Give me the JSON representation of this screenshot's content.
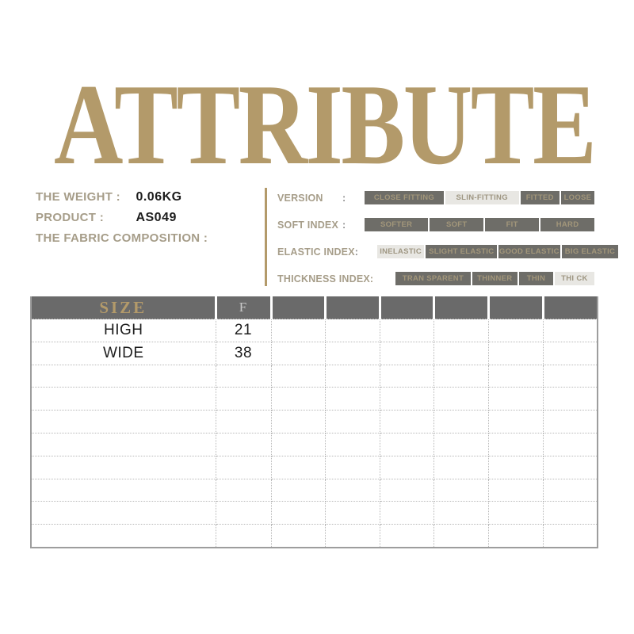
{
  "title": "ATTRIBUTE",
  "colors": {
    "accent_tan": "#b39a6a",
    "label_tan": "#a69d89",
    "segment_dark": "#6e6d68",
    "segment_dark_text": "#a2967a",
    "segment_selected_bg": "#e8e7e3",
    "segment_selected_text": "#9e9682",
    "table_header_bg": "#6a6a6a"
  },
  "info": {
    "rows": [
      {
        "label": "THE WEIGHT :",
        "value": "0.06KG"
      },
      {
        "label": "PRODUCT :",
        "value": "AS049"
      },
      {
        "label": "THE FABRIC COMPOSITION :",
        "value": ""
      }
    ]
  },
  "attributes": [
    {
      "label": "VERSION",
      "colon": ":",
      "options": [
        {
          "text": "CLOSE FITTING",
          "selected": false
        },
        {
          "text": "SLIN-FITTING",
          "selected": true
        },
        {
          "text": "FITTED",
          "selected": false
        },
        {
          "text": "LOOSE",
          "selected": false
        }
      ]
    },
    {
      "label": "SOFT INDEX",
      "colon": ":",
      "options": [
        {
          "text": "SOFTER",
          "selected": false
        },
        {
          "text": "SOFT",
          "selected": false
        },
        {
          "text": "FIT",
          "selected": false
        },
        {
          "text": "HARD",
          "selected": false
        }
      ]
    },
    {
      "label": "ELASTIC INDEX",
      "colon": ":",
      "options": [
        {
          "text": "INELASTIC",
          "selected": true
        },
        {
          "text": "SLIGHT ELASTIC",
          "selected": false
        },
        {
          "text": "GOOD ELASTIC",
          "selected": false
        },
        {
          "text": "BIG ELASTIC",
          "selected": false
        }
      ]
    },
    {
      "label": "THICKNESS INDEX:",
      "colon": "",
      "options": [
        {
          "text": "TRAN SPARENT",
          "selected": false
        },
        {
          "text": "THINNER",
          "selected": false
        },
        {
          "text": "THIN",
          "selected": false
        },
        {
          "text": "THI CK",
          "selected": true
        }
      ]
    }
  ],
  "size_table": {
    "header": [
      "SIZE",
      "F",
      "",
      "",
      "",
      "",
      "",
      ""
    ],
    "rows": [
      [
        "HIGH",
        "21",
        "",
        "",
        "",
        "",
        "",
        ""
      ],
      [
        "WIDE",
        "38",
        "",
        "",
        "",
        "",
        "",
        ""
      ],
      [
        "",
        "",
        "",
        "",
        "",
        "",
        "",
        ""
      ],
      [
        "",
        "",
        "",
        "",
        "",
        "",
        "",
        ""
      ],
      [
        "",
        "",
        "",
        "",
        "",
        "",
        "",
        ""
      ],
      [
        "",
        "",
        "",
        "",
        "",
        "",
        "",
        ""
      ],
      [
        "",
        "",
        "",
        "",
        "",
        "",
        "",
        ""
      ],
      [
        "",
        "",
        "",
        "",
        "",
        "",
        "",
        ""
      ],
      [
        "",
        "",
        "",
        "",
        "",
        "",
        "",
        ""
      ],
      [
        "",
        "",
        "",
        "",
        "",
        "",
        "",
        ""
      ]
    ]
  }
}
